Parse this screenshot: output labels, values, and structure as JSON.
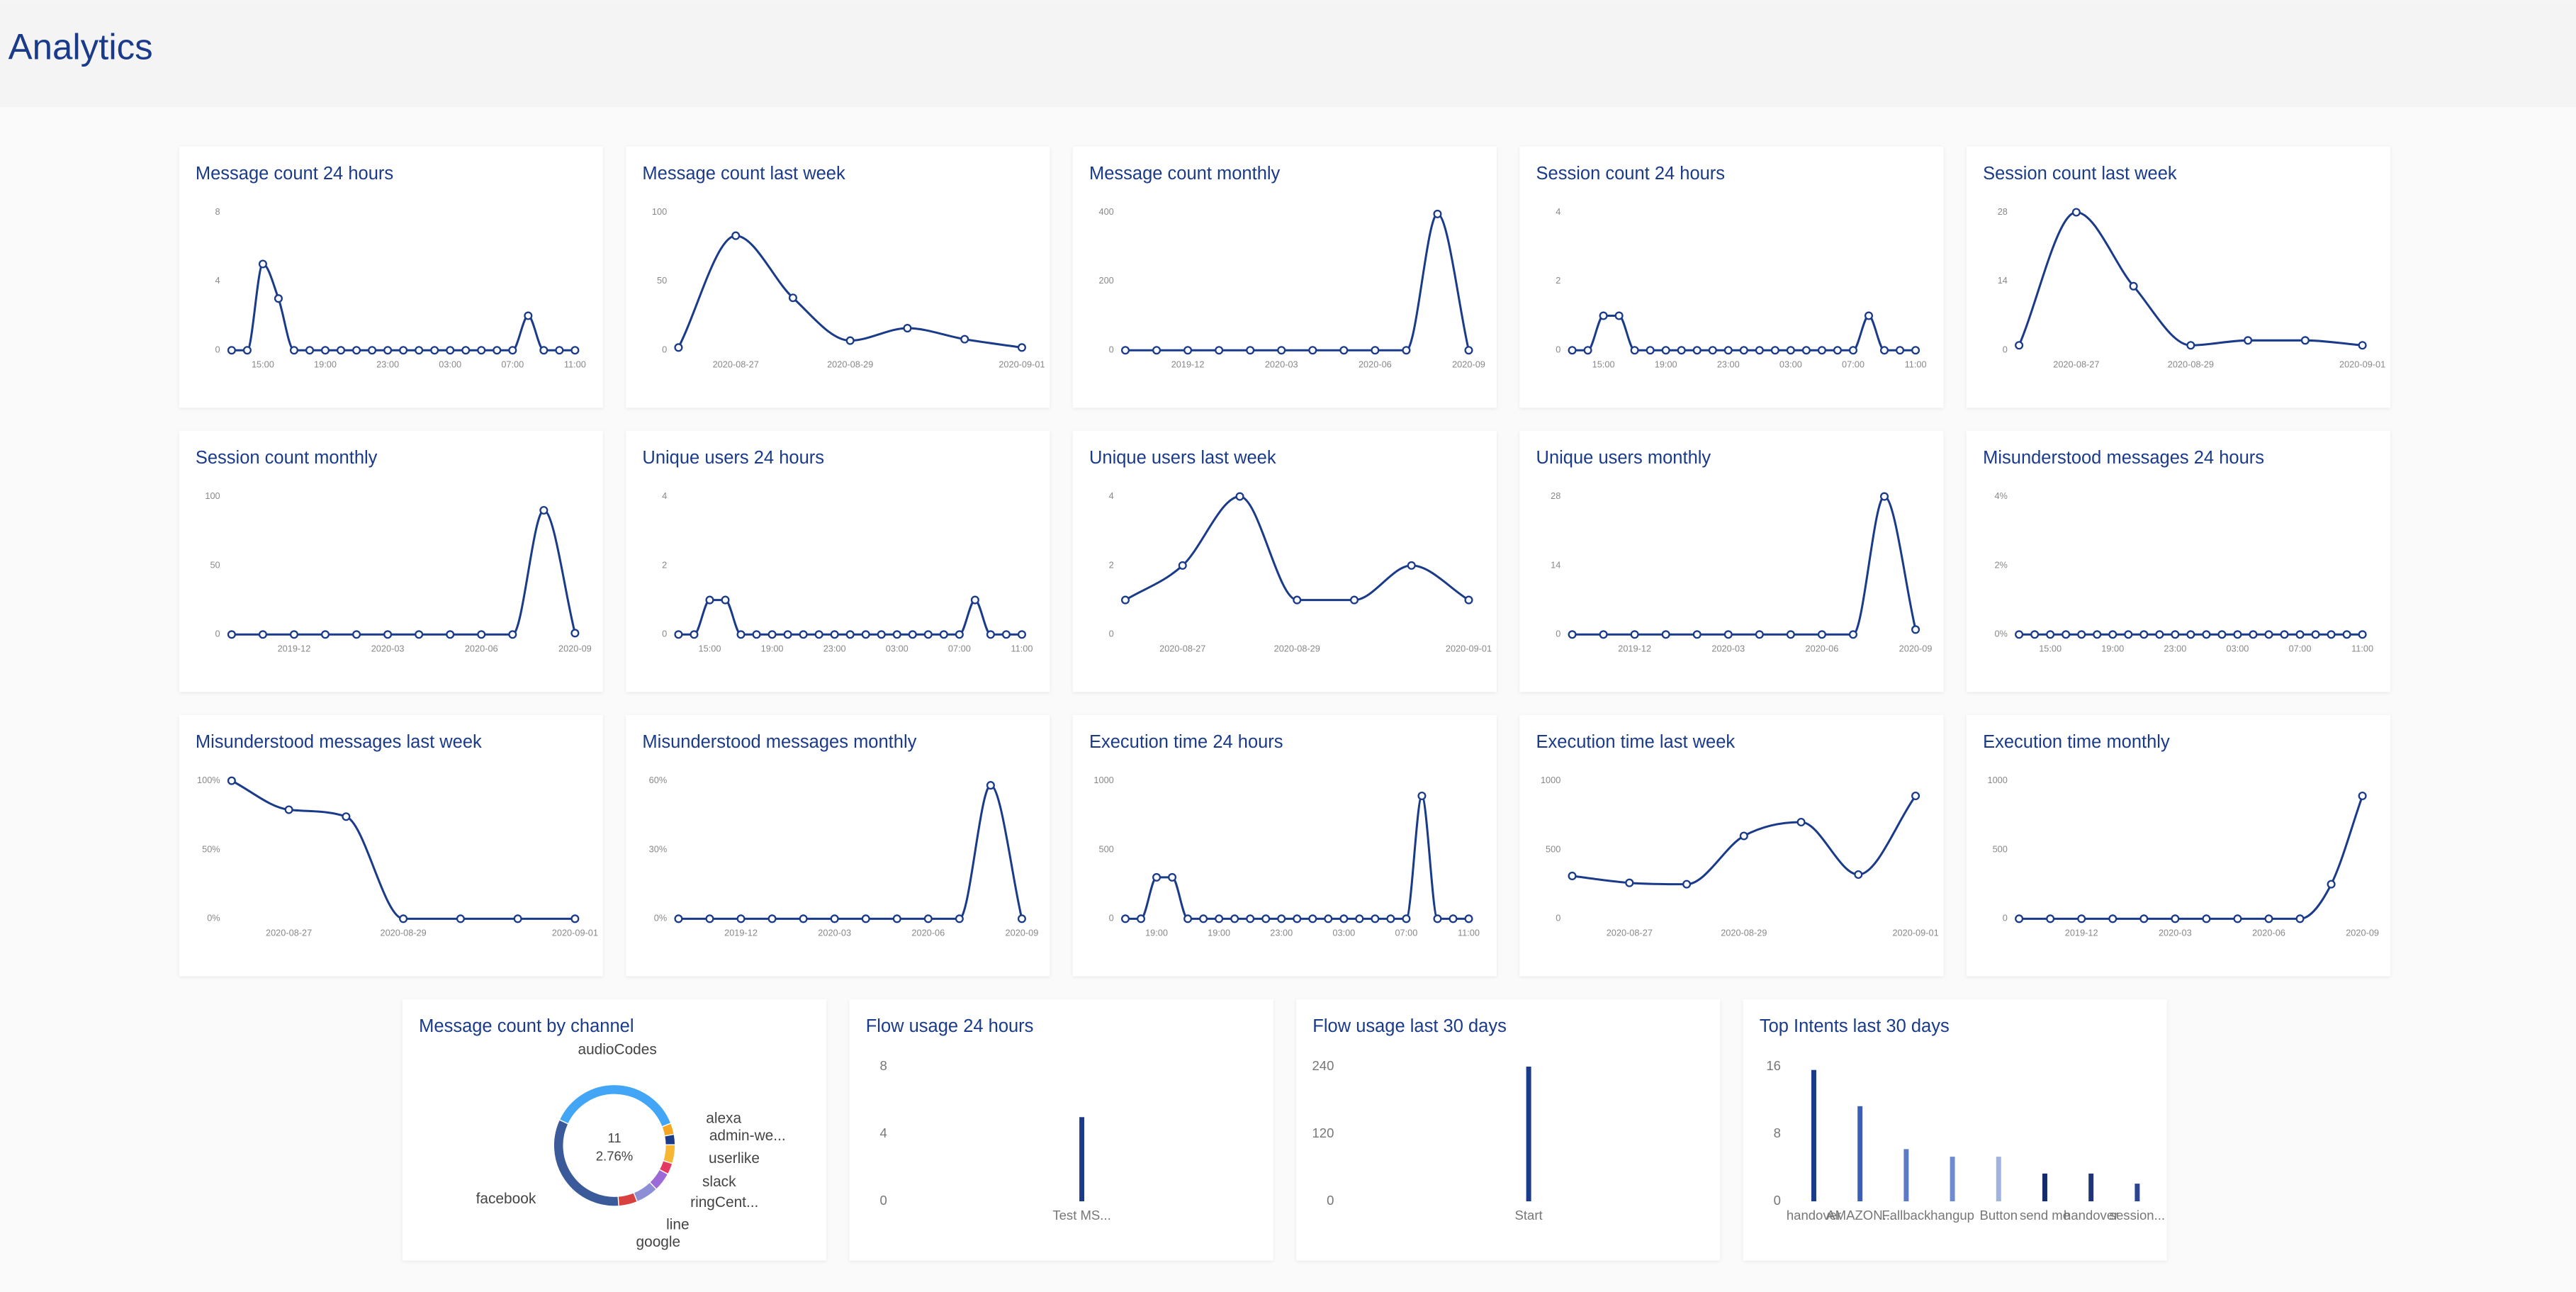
{
  "header": {
    "title": "Analytics"
  },
  "chart_data": [
    {
      "type": "line",
      "title": "Message count 24 hours",
      "color": "#1a3a8a",
      "ylim": [
        0,
        8
      ],
      "yticks": [
        0,
        4,
        8
      ],
      "categories": [
        null,
        null,
        "15:00",
        null,
        null,
        null,
        "19:00",
        null,
        null,
        null,
        "23:00",
        null,
        null,
        null,
        "03:00",
        null,
        null,
        null,
        "07:00",
        null,
        null,
        null,
        "11:00"
      ],
      "values": [
        0,
        0,
        5,
        3,
        0,
        0,
        0,
        0,
        0,
        0,
        0,
        0,
        0,
        0,
        0,
        0,
        0,
        0,
        0,
        2,
        0,
        0,
        0
      ]
    },
    {
      "type": "line",
      "title": "Message count last week",
      "color": "#1a3a8a",
      "ylim": [
        0,
        100
      ],
      "yticks": [
        0,
        50,
        100
      ],
      "categories": [
        null,
        "2020-08-27",
        null,
        "2020-08-29",
        null,
        null,
        "2020-09-01"
      ],
      "values": [
        2,
        83,
        38,
        7,
        16,
        8,
        2
      ]
    },
    {
      "type": "line",
      "title": "Message count monthly",
      "color": "#1a3a8a",
      "ylim": [
        0,
        400
      ],
      "yticks": [
        0,
        200,
        400
      ],
      "categories": [
        null,
        null,
        "2019-12",
        null,
        null,
        "2020-03",
        null,
        null,
        "2020-06",
        null,
        null,
        "2020-09"
      ],
      "values": [
        0,
        0,
        0,
        0,
        0,
        0,
        0,
        0,
        0,
        0,
        395,
        0
      ]
    },
    {
      "type": "line",
      "title": "Session count 24 hours",
      "color": "#1a3a8a",
      "ylim": [
        0,
        4
      ],
      "yticks": [
        0,
        2,
        4
      ],
      "categories": [
        null,
        null,
        "15:00",
        null,
        null,
        null,
        "19:00",
        null,
        null,
        null,
        "23:00",
        null,
        null,
        null,
        "03:00",
        null,
        null,
        null,
        "07:00",
        null,
        null,
        null,
        "11:00"
      ],
      "values": [
        0,
        0,
        1,
        1,
        0,
        0,
        0,
        0,
        0,
        0,
        0,
        0,
        0,
        0,
        0,
        0,
        0,
        0,
        0,
        1,
        0,
        0,
        0
      ]
    },
    {
      "type": "line",
      "title": "Session count last week",
      "color": "#1a3a8a",
      "ylim": [
        0,
        28
      ],
      "yticks": [
        0,
        14,
        28
      ],
      "categories": [
        null,
        "2020-08-27",
        null,
        "2020-08-29",
        null,
        null,
        "2020-09-01"
      ],
      "values": [
        1,
        28,
        13,
        1,
        2,
        2,
        1
      ]
    },
    {
      "type": "line",
      "title": "Session count monthly",
      "color": "#1a3a8a",
      "ylim": [
        0,
        100
      ],
      "yticks": [
        0,
        50,
        100
      ],
      "categories": [
        null,
        null,
        "2019-12",
        null,
        null,
        "2020-03",
        null,
        null,
        "2020-06",
        null,
        null,
        "2020-09"
      ],
      "values": [
        0,
        0,
        0,
        0,
        0,
        0,
        0,
        0,
        0,
        0,
        90,
        1
      ]
    },
    {
      "type": "line",
      "title": "Unique users 24 hours",
      "color": "#1a3a8a",
      "ylim": [
        0,
        4
      ],
      "yticks": [
        0,
        2,
        4
      ],
      "categories": [
        null,
        null,
        "15:00",
        null,
        null,
        null,
        "19:00",
        null,
        null,
        null,
        "23:00",
        null,
        null,
        null,
        "03:00",
        null,
        null,
        null,
        "07:00",
        null,
        null,
        null,
        "11:00"
      ],
      "values": [
        0,
        0,
        1,
        1,
        0,
        0,
        0,
        0,
        0,
        0,
        0,
        0,
        0,
        0,
        0,
        0,
        0,
        0,
        0,
        1,
        0,
        0,
        0
      ]
    },
    {
      "type": "line",
      "title": "Unique users last week",
      "color": "#1a3a8a",
      "ylim": [
        0,
        4
      ],
      "yticks": [
        0,
        2,
        4
      ],
      "categories": [
        null,
        "2020-08-27",
        null,
        "2020-08-29",
        null,
        null,
        "2020-09-01"
      ],
      "values": [
        1,
        2,
        4,
        1,
        1,
        2,
        1
      ]
    },
    {
      "type": "line",
      "title": "Unique users monthly",
      "color": "#1a3a8a",
      "ylim": [
        0,
        28
      ],
      "yticks": [
        0,
        14,
        28
      ],
      "categories": [
        null,
        null,
        "2019-12",
        null,
        null,
        "2020-03",
        null,
        null,
        "2020-06",
        null,
        null,
        "2020-09"
      ],
      "values": [
        0,
        0,
        0,
        0,
        0,
        0,
        0,
        0,
        0,
        0,
        28,
        1
      ]
    },
    {
      "type": "line",
      "title": "Misunderstood messages 24 hours",
      "color": "#1a3a8a",
      "ylim": [
        0,
        4
      ],
      "yticks": [
        {
          "value": 0,
          "label": "0%"
        },
        {
          "value": 2,
          "label": "2%"
        },
        {
          "value": 4,
          "label": "4%"
        }
      ],
      "categories": [
        null,
        null,
        "15:00",
        null,
        null,
        null,
        "19:00",
        null,
        null,
        null,
        "23:00",
        null,
        null,
        null,
        "03:00",
        null,
        null,
        null,
        "07:00",
        null,
        null,
        null,
        "11:00"
      ],
      "values": [
        0,
        0,
        0,
        0,
        0,
        0,
        0,
        0,
        0,
        0,
        0,
        0,
        0,
        0,
        0,
        0,
        0,
        0,
        0,
        0,
        0,
        0,
        0
      ]
    },
    {
      "type": "line",
      "title": "Misunderstood messages last week",
      "color": "#1a3a8a",
      "ylim": [
        0,
        100
      ],
      "yticks": [
        {
          "value": 0,
          "label": "0%"
        },
        {
          "value": 50,
          "label": "50%"
        },
        {
          "value": 100,
          "label": "100%"
        }
      ],
      "categories": [
        null,
        "2020-08-27",
        null,
        "2020-08-29",
        null,
        null,
        "2020-09-01"
      ],
      "values": [
        100,
        79,
        74,
        0,
        0,
        0,
        0
      ]
    },
    {
      "type": "line",
      "title": "Misunderstood messages monthly",
      "color": "#1a3a8a",
      "ylim": [
        0,
        60
      ],
      "yticks": [
        {
          "value": 0,
          "label": "0%"
        },
        {
          "value": 30,
          "label": "30%"
        },
        {
          "value": 60,
          "label": "60%"
        }
      ],
      "categories": [
        null,
        null,
        "2019-12",
        null,
        null,
        "2020-03",
        null,
        null,
        "2020-06",
        null,
        null,
        "2020-09"
      ],
      "values": [
        0,
        0,
        0,
        0,
        0,
        0,
        0,
        0,
        0,
        0,
        58,
        0
      ]
    },
    {
      "type": "line",
      "title": "Execution time 24 hours",
      "color": "#1a3a8a",
      "ylim": [
        0,
        1000
      ],
      "yticks": [
        0,
        500,
        1000
      ],
      "categories": [
        null,
        null,
        "19:00",
        null,
        null,
        null,
        "19:00",
        null,
        null,
        null,
        "23:00",
        null,
        null,
        null,
        "03:00",
        null,
        null,
        null,
        "07:00",
        null,
        null,
        null,
        "11:00"
      ],
      "values": [
        0,
        0,
        300,
        300,
        0,
        0,
        0,
        0,
        0,
        0,
        0,
        0,
        0,
        0,
        0,
        0,
        0,
        0,
        0,
        890,
        0,
        0,
        0
      ]
    },
    {
      "type": "line",
      "title": "Execution time last week",
      "color": "#1a3a8a",
      "ylim": [
        0,
        1000
      ],
      "yticks": [
        0,
        500,
        1000
      ],
      "categories": [
        null,
        "2020-08-27",
        null,
        "2020-08-29",
        null,
        null,
        "2020-09-01"
      ],
      "values": [
        310,
        260,
        250,
        600,
        700,
        320,
        890
      ]
    },
    {
      "type": "line",
      "title": "Execution time monthly",
      "color": "#1a3a8a",
      "ylim": [
        0,
        1000
      ],
      "yticks": [
        0,
        500,
        1000
      ],
      "categories": [
        null,
        null,
        "2019-12",
        null,
        null,
        "2020-03",
        null,
        null,
        "2020-06",
        null,
        null,
        "2020-09"
      ],
      "values": [
        0,
        0,
        0,
        0,
        0,
        0,
        0,
        0,
        0,
        0,
        250,
        890
      ]
    },
    {
      "type": "pie",
      "title": "Message count by channel",
      "hover_count": "11",
      "hover_percent": "2.76%",
      "categories": [
        "audioCodes",
        "alexa",
        "admin-we...",
        "userlike",
        "slack",
        "ringCent...",
        "line",
        "google",
        "facebook"
      ],
      "values": [
        37,
        3,
        2.76,
        5,
        3,
        5,
        6,
        5,
        33
      ],
      "colors": [
        "#42a5f5",
        "#f5a623",
        "#1a3a8a",
        "#f7b733",
        "#e53960",
        "#9c6ad6",
        "#8c8fd6",
        "#d94040",
        "#3a5a9a"
      ]
    },
    {
      "type": "bar",
      "title": "Flow usage 24 hours",
      "color": "#1a3a8a",
      "ylim": [
        0,
        8
      ],
      "yticks": [
        0,
        4,
        8
      ],
      "categories": [
        "Test MS..."
      ],
      "values": [
        5
      ]
    },
    {
      "type": "bar",
      "title": "Flow usage last 30 days",
      "color": "#1a3a8a",
      "ylim": [
        0,
        240
      ],
      "yticks": [
        0,
        120,
        240
      ],
      "categories": [
        "Start"
      ],
      "values": [
        240
      ]
    },
    {
      "type": "bar",
      "title": "Top Intents last 30 days",
      "ylim": [
        0,
        16
      ],
      "yticks": [
        0,
        8,
        16
      ],
      "categories": [
        "handover",
        "AMAZON...",
        "Fallback",
        "hangup",
        "Button",
        "send me",
        "handover",
        "session..."
      ],
      "values": [
        15.6,
        11.3,
        6.2,
        5.3,
        5.3,
        3.3,
        3.3,
        2.1
      ],
      "colors": [
        "#1a3a8a",
        "#3a5fb8",
        "#5b7bc7",
        "#6e8bd0",
        "#9fb3e0",
        "#142c6e",
        "#1f3577",
        "#2a448f"
      ]
    }
  ]
}
